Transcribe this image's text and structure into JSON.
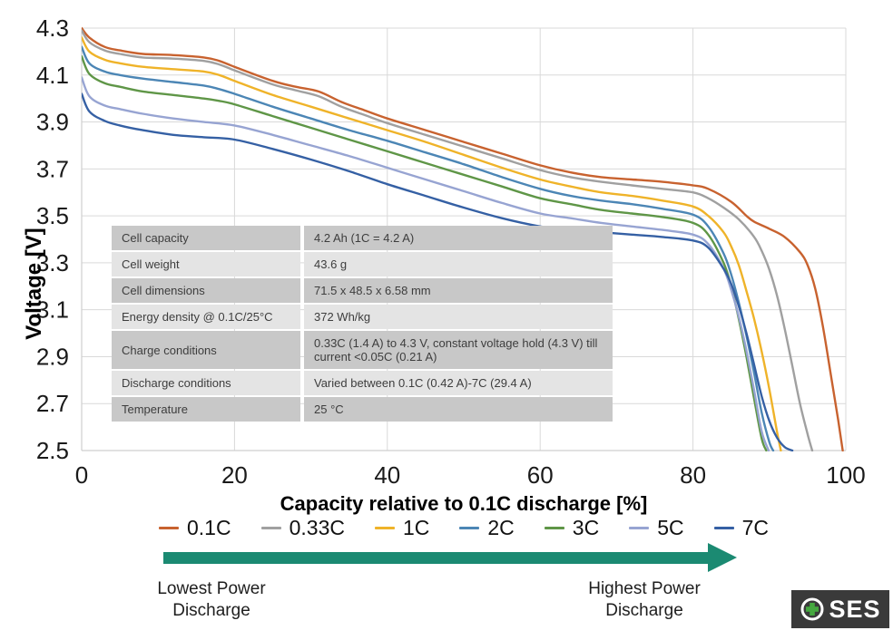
{
  "chart_data": {
    "type": "line",
    "title": "",
    "xlabel": "Capacity relative to 0.1C discharge [%]",
    "ylabel": "Voltage [V]",
    "xlim": [
      0,
      100
    ],
    "ylim": [
      2.5,
      4.3
    ],
    "xticks": [
      0,
      20,
      40,
      60,
      80,
      100
    ],
    "yticks": [
      4.3,
      4.1,
      3.9,
      3.7,
      3.5,
      3.3,
      3.1,
      2.9,
      2.7,
      2.5
    ],
    "grid": true,
    "gridline_color": "#d9d9d9",
    "spine_color": "#cfcfcf",
    "legend_position": "bottom",
    "series": [
      {
        "name": "0.1C",
        "color": "#C8622F",
        "points": [
          [
            0,
            4.3
          ],
          [
            1,
            4.26
          ],
          [
            3,
            4.22
          ],
          [
            5,
            4.205
          ],
          [
            8,
            4.19
          ],
          [
            12,
            4.185
          ],
          [
            16,
            4.175
          ],
          [
            18,
            4.16
          ],
          [
            20,
            4.135
          ],
          [
            25,
            4.075
          ],
          [
            28,
            4.05
          ],
          [
            31,
            4.03
          ],
          [
            34,
            3.985
          ],
          [
            37,
            3.95
          ],
          [
            40,
            3.915
          ],
          [
            45,
            3.865
          ],
          [
            50,
            3.815
          ],
          [
            55,
            3.765
          ],
          [
            60,
            3.715
          ],
          [
            64,
            3.685
          ],
          [
            68,
            3.665
          ],
          [
            72,
            3.655
          ],
          [
            76,
            3.645
          ],
          [
            80,
            3.63
          ],
          [
            82,
            3.615
          ],
          [
            85,
            3.56
          ],
          [
            87,
            3.5
          ],
          [
            88,
            3.475
          ],
          [
            90,
            3.445
          ],
          [
            92,
            3.41
          ],
          [
            94,
            3.345
          ],
          [
            95,
            3.29
          ],
          [
            96,
            3.19
          ],
          [
            97,
            3.03
          ],
          [
            98,
            2.83
          ],
          [
            99,
            2.63
          ],
          [
            99.6,
            2.5
          ]
        ]
      },
      {
        "name": "0.33C",
        "color": "#A0A0A0",
        "points": [
          [
            0,
            4.29
          ],
          [
            1,
            4.24
          ],
          [
            3,
            4.205
          ],
          [
            5,
            4.19
          ],
          [
            8,
            4.175
          ],
          [
            12,
            4.17
          ],
          [
            16,
            4.16
          ],
          [
            18,
            4.145
          ],
          [
            20,
            4.12
          ],
          [
            25,
            4.06
          ],
          [
            28,
            4.035
          ],
          [
            31,
            4.01
          ],
          [
            34,
            3.965
          ],
          [
            37,
            3.93
          ],
          [
            40,
            3.895
          ],
          [
            45,
            3.845
          ],
          [
            50,
            3.795
          ],
          [
            55,
            3.745
          ],
          [
            60,
            3.695
          ],
          [
            64,
            3.665
          ],
          [
            68,
            3.645
          ],
          [
            72,
            3.63
          ],
          [
            76,
            3.615
          ],
          [
            80,
            3.6
          ],
          [
            82,
            3.575
          ],
          [
            84,
            3.535
          ],
          [
            86,
            3.485
          ],
          [
            88,
            3.41
          ],
          [
            89,
            3.35
          ],
          [
            90,
            3.27
          ],
          [
            91,
            3.16
          ],
          [
            92,
            3.02
          ],
          [
            93,
            2.86
          ],
          [
            94,
            2.7
          ],
          [
            95,
            2.57
          ],
          [
            95.6,
            2.5
          ]
        ]
      },
      {
        "name": "1C",
        "color": "#EFB329",
        "points": [
          [
            0,
            4.26
          ],
          [
            1,
            4.2
          ],
          [
            3,
            4.165
          ],
          [
            5,
            4.15
          ],
          [
            8,
            4.135
          ],
          [
            12,
            4.125
          ],
          [
            16,
            4.115
          ],
          [
            18,
            4.1
          ],
          [
            20,
            4.075
          ],
          [
            25,
            4.015
          ],
          [
            30,
            3.965
          ],
          [
            35,
            3.915
          ],
          [
            40,
            3.865
          ],
          [
            45,
            3.815
          ],
          [
            50,
            3.76
          ],
          [
            55,
            3.705
          ],
          [
            60,
            3.655
          ],
          [
            64,
            3.625
          ],
          [
            68,
            3.6
          ],
          [
            72,
            3.585
          ],
          [
            76,
            3.565
          ],
          [
            80,
            3.54
          ],
          [
            82,
            3.5
          ],
          [
            84,
            3.43
          ],
          [
            85,
            3.37
          ],
          [
            86,
            3.29
          ],
          [
            87,
            3.18
          ],
          [
            88,
            3.06
          ],
          [
            89,
            2.92
          ],
          [
            90,
            2.76
          ],
          [
            91,
            2.58
          ],
          [
            91.5,
            2.5
          ]
        ]
      },
      {
        "name": "2C",
        "color": "#4C86B5",
        "points": [
          [
            0,
            4.22
          ],
          [
            1,
            4.15
          ],
          [
            3,
            4.115
          ],
          [
            5,
            4.1
          ],
          [
            8,
            4.085
          ],
          [
            12,
            4.07
          ],
          [
            16,
            4.055
          ],
          [
            18,
            4.04
          ],
          [
            20,
            4.02
          ],
          [
            25,
            3.965
          ],
          [
            30,
            3.915
          ],
          [
            35,
            3.865
          ],
          [
            40,
            3.82
          ],
          [
            45,
            3.77
          ],
          [
            50,
            3.72
          ],
          [
            55,
            3.665
          ],
          [
            60,
            3.615
          ],
          [
            64,
            3.585
          ],
          [
            68,
            3.565
          ],
          [
            72,
            3.55
          ],
          [
            76,
            3.53
          ],
          [
            80,
            3.505
          ],
          [
            82,
            3.455
          ],
          [
            84,
            3.34
          ],
          [
            85,
            3.25
          ],
          [
            86,
            3.13
          ],
          [
            87,
            2.99
          ],
          [
            88,
            2.83
          ],
          [
            89,
            2.66
          ],
          [
            90,
            2.535
          ],
          [
            90.5,
            2.5
          ]
        ]
      },
      {
        "name": "3C",
        "color": "#5F9647",
        "points": [
          [
            0,
            4.18
          ],
          [
            1,
            4.105
          ],
          [
            3,
            4.065
          ],
          [
            5,
            4.05
          ],
          [
            8,
            4.03
          ],
          [
            12,
            4.015
          ],
          [
            16,
            4.0
          ],
          [
            18,
            3.99
          ],
          [
            20,
            3.975
          ],
          [
            25,
            3.925
          ],
          [
            30,
            3.875
          ],
          [
            35,
            3.825
          ],
          [
            40,
            3.775
          ],
          [
            45,
            3.725
          ],
          [
            50,
            3.675
          ],
          [
            55,
            3.625
          ],
          [
            60,
            3.575
          ],
          [
            64,
            3.55
          ],
          [
            68,
            3.525
          ],
          [
            72,
            3.51
          ],
          [
            76,
            3.495
          ],
          [
            80,
            3.47
          ],
          [
            82,
            3.42
          ],
          [
            84,
            3.3
          ],
          [
            85,
            3.2
          ],
          [
            86,
            3.06
          ],
          [
            87,
            2.9
          ],
          [
            88,
            2.72
          ],
          [
            89,
            2.55
          ],
          [
            89.6,
            2.5
          ]
        ]
      },
      {
        "name": "5C",
        "color": "#97A4D2",
        "points": [
          [
            0,
            4.09
          ],
          [
            1,
            4.01
          ],
          [
            3,
            3.97
          ],
          [
            5,
            3.955
          ],
          [
            8,
            3.935
          ],
          [
            12,
            3.915
          ],
          [
            16,
            3.9
          ],
          [
            20,
            3.885
          ],
          [
            25,
            3.845
          ],
          [
            30,
            3.8
          ],
          [
            35,
            3.755
          ],
          [
            40,
            3.705
          ],
          [
            45,
            3.655
          ],
          [
            50,
            3.605
          ],
          [
            55,
            3.555
          ],
          [
            60,
            3.51
          ],
          [
            64,
            3.49
          ],
          [
            68,
            3.47
          ],
          [
            72,
            3.455
          ],
          [
            76,
            3.44
          ],
          [
            80,
            3.42
          ],
          [
            82,
            3.38
          ],
          [
            84,
            3.275
          ],
          [
            85,
            3.185
          ],
          [
            86,
            3.07
          ],
          [
            87,
            2.925
          ],
          [
            88,
            2.755
          ],
          [
            89,
            2.58
          ],
          [
            89.9,
            2.5
          ]
        ]
      },
      {
        "name": "7C",
        "color": "#3560A4",
        "points": [
          [
            0,
            4.02
          ],
          [
            1,
            3.945
          ],
          [
            3,
            3.905
          ],
          [
            5,
            3.885
          ],
          [
            8,
            3.865
          ],
          [
            12,
            3.845
          ],
          [
            16,
            3.835
          ],
          [
            20,
            3.825
          ],
          [
            25,
            3.785
          ],
          [
            30,
            3.74
          ],
          [
            35,
            3.69
          ],
          [
            40,
            3.635
          ],
          [
            45,
            3.585
          ],
          [
            50,
            3.535
          ],
          [
            55,
            3.49
          ],
          [
            60,
            3.455
          ],
          [
            64,
            3.44
          ],
          [
            68,
            3.43
          ],
          [
            72,
            3.42
          ],
          [
            76,
            3.41
          ],
          [
            80,
            3.395
          ],
          [
            82,
            3.365
          ],
          [
            84,
            3.275
          ],
          [
            85,
            3.21
          ],
          [
            86,
            3.115
          ],
          [
            87,
            3.0
          ],
          [
            88,
            2.865
          ],
          [
            89,
            2.73
          ],
          [
            90,
            2.625
          ],
          [
            91,
            2.555
          ],
          [
            92,
            2.515
          ],
          [
            93,
            2.5
          ]
        ]
      }
    ]
  },
  "spec_table": {
    "rows": [
      {
        "label": "Cell capacity",
        "value": "4.2 Ah (1C = 4.2 A)"
      },
      {
        "label": "Cell weight",
        "value": "43.6 g"
      },
      {
        "label": "Cell dimensions",
        "value": "71.5 x 48.5 x 6.58 mm"
      },
      {
        "label": "Energy density @ 0.1C/25°C",
        "value": "372 Wh/kg"
      },
      {
        "label": "Charge conditions",
        "value": "0.33C (1.4 A) to 4.3 V, constant voltage hold (4.3 V) till current <0.05C (0.21 A)"
      },
      {
        "label": "Discharge conditions",
        "value": "Varied between 0.1C (0.42 A)-7C (29.4 A)"
      },
      {
        "label": "Temperature",
        "value": "25 °C"
      }
    ]
  },
  "footer": {
    "arrow_color": "#1B8A72",
    "left_label_line1": "Lowest Power",
    "left_label_line2": "Discharge",
    "right_label_line1": "Highest Power",
    "right_label_line2": "Discharge"
  },
  "logo": {
    "text": "SES",
    "bg_color": "#3a3a3a",
    "plus_color": "#45A83F"
  }
}
